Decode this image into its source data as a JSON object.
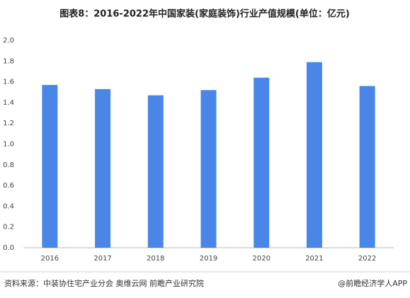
{
  "chart_data": {
    "type": "bar",
    "title": "图表8：2016-2022年中国家装(家庭装饰)行业产值规模(单位：亿元)",
    "categories": [
      "2016",
      "2017",
      "2018",
      "2019",
      "2020",
      "2021",
      "2022"
    ],
    "values": [
      1.57,
      1.53,
      1.47,
      1.52,
      1.64,
      1.79,
      1.56
    ],
    "color": "#4a86e8",
    "ylim": [
      0,
      2
    ],
    "yticks": [
      {
        "value": 0,
        "label": "0.0"
      },
      0.2,
      0.4,
      0.6,
      0.8,
      {
        "value": 1,
        "label": "1.0"
      },
      1.2,
      1.4,
      1.6,
      1.8,
      {
        "value": 2,
        "label": "2.0"
      }
    ],
    "grid": false,
    "source": "资料来源：中装协住宅产业分会 奥维云网 前瞻产业研究院",
    "credit": "@前瞻经济学人APP"
  }
}
